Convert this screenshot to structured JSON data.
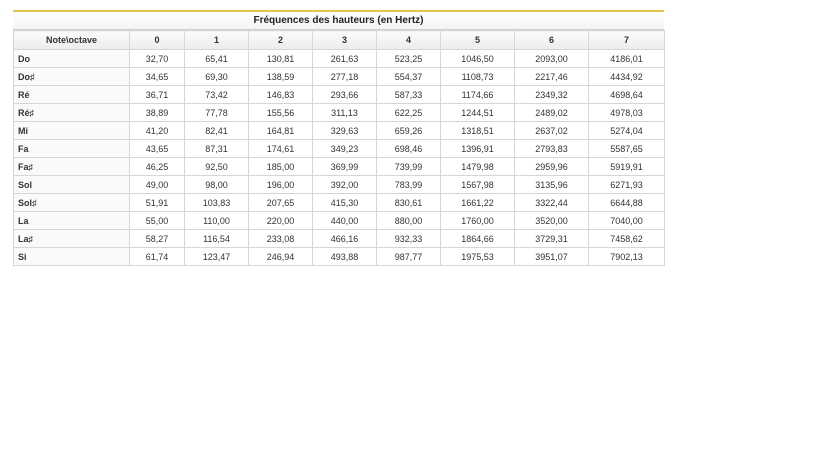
{
  "table": {
    "caption": "Fréquences des hauteurs (en Hertz)",
    "header": [
      "Note\\octave",
      "0",
      "1",
      "2",
      "3",
      "4",
      "5",
      "6",
      "7"
    ],
    "rows": [
      [
        "Do",
        "32,70",
        "65,41",
        "130,81",
        "261,63",
        "523,25",
        "1046,50",
        "2093,00",
        "4186,01"
      ],
      [
        "Do♯",
        "34,65",
        "69,30",
        "138,59",
        "277,18",
        "554,37",
        "1108,73",
        "2217,46",
        "4434,92"
      ],
      [
        "Ré",
        "36,71",
        "73,42",
        "146,83",
        "293,66",
        "587,33",
        "1174,66",
        "2349,32",
        "4698,64"
      ],
      [
        "Ré♯",
        "38,89",
        "77,78",
        "155,56",
        "311,13",
        "622,25",
        "1244,51",
        "2489,02",
        "4978,03"
      ],
      [
        "Mi",
        "41,20",
        "82,41",
        "164,81",
        "329,63",
        "659,26",
        "1318,51",
        "2637,02",
        "5274,04"
      ],
      [
        "Fa",
        "43,65",
        "87,31",
        "174,61",
        "349,23",
        "698,46",
        "1396,91",
        "2793,83",
        "5587,65"
      ],
      [
        "Fa♯",
        "46,25",
        "92,50",
        "185,00",
        "369,99",
        "739,99",
        "1479,98",
        "2959,96",
        "5919,91"
      ],
      [
        "Sol",
        "49,00",
        "98,00",
        "196,00",
        "392,00",
        "783,99",
        "1567,98",
        "3135,96",
        "6271,93"
      ],
      [
        "Sol♯",
        "51,91",
        "103,83",
        "207,65",
        "415,30",
        "830,61",
        "1661,22",
        "3322,44",
        "6644,88"
      ],
      [
        "La",
        "55,00",
        "110,00",
        "220,00",
        "440,00",
        "880,00",
        "1760,00",
        "3520,00",
        "7040,00"
      ],
      [
        "La♯",
        "58,27",
        "116,54",
        "233,08",
        "466,16",
        "932,33",
        "1864,66",
        "3729,31",
        "7458,62"
      ],
      [
        "Si",
        "61,74",
        "123,47",
        "246,94",
        "493,88",
        "987,77",
        "1975,53",
        "3951,07",
        "7902,13"
      ]
    ]
  }
}
